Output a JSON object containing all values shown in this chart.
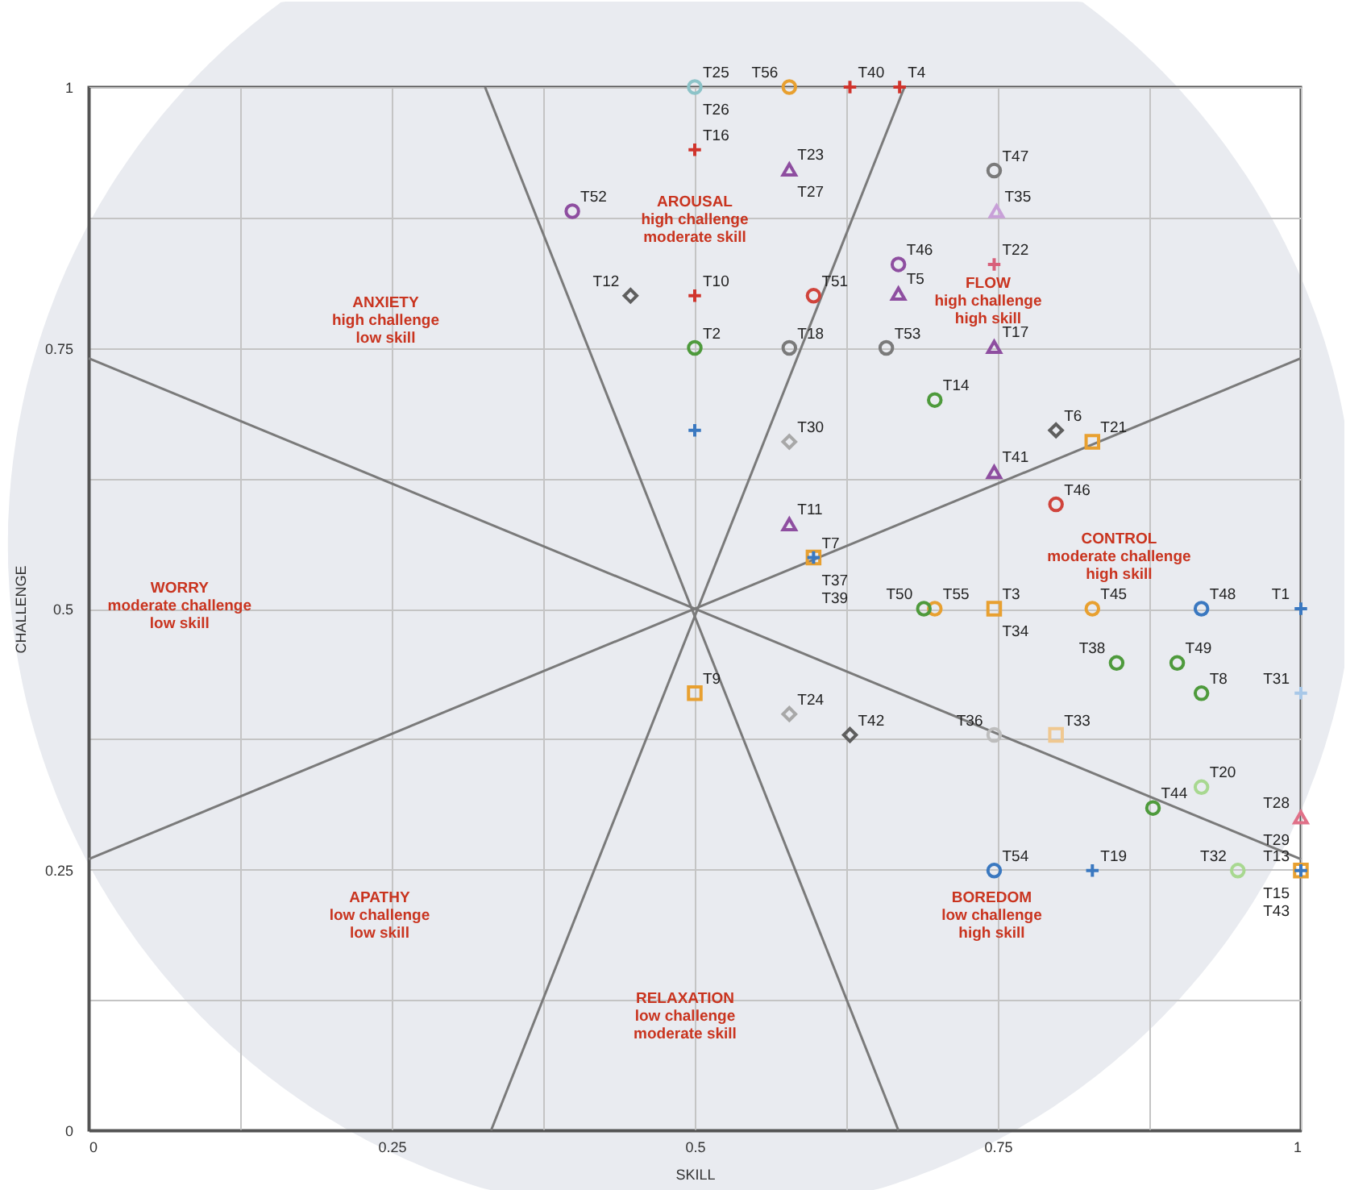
{
  "chart_data": {
    "type": "scatter",
    "xlabel": "SKILL",
    "ylabel": "CHALLENGE",
    "xlim": [
      0,
      1
    ],
    "ylim": [
      0,
      1
    ],
    "xticks": [
      0,
      {
        "value": 0.125,
        "label": null
      },
      0.25,
      {
        "value": 0.375,
        "label": null
      },
      0.5,
      {
        "value": 0.625,
        "label": null
      },
      0.75,
      {
        "value": 0.875,
        "label": null
      },
      1
    ],
    "yticks": [
      0,
      {
        "value": 0.125,
        "label": null
      },
      0.25,
      {
        "value": 0.375,
        "label": null
      },
      0.5,
      {
        "value": 0.625,
        "label": null
      },
      0.75,
      {
        "value": 0.875,
        "label": null
      },
      1
    ],
    "grid": true,
    "series": [
      {
        "type": "line",
        "color": "#7a7a7a",
        "x": [
          0,
          1
        ],
        "values": [
          0.74,
          0.26
        ]
      },
      {
        "type": "line",
        "color": "#7a7a7a",
        "x": [
          0,
          1
        ],
        "values": [
          0.26,
          0.74
        ]
      },
      {
        "type": "line",
        "color": "#7a7a7a",
        "x": [
          0.327,
          0.668
        ],
        "values": [
          1,
          0
        ]
      },
      {
        "type": "line",
        "color": "#7a7a7a",
        "x": [
          0.332,
          0.673
        ],
        "values": [
          0,
          1
        ]
      },
      {
        "marker": "cross",
        "color": "#d0342c",
        "x": [
          0.628,
          0.669,
          0.5,
          0.5
        ],
        "values": [
          1,
          1,
          0.94,
          0.8
        ]
      },
      {
        "marker": "cross",
        "color": "#d8607a",
        "x": [
          0.747
        ],
        "values": [
          0.83
        ]
      },
      {
        "marker": "circle",
        "color": "#e8a030",
        "x": [
          0.578,
          0.698,
          0.828
        ],
        "values": [
          1,
          0.5,
          0.5
        ]
      },
      {
        "marker": "circle",
        "color": "#8cc3c8",
        "x": [
          0.5
        ],
        "values": [
          1
        ]
      },
      {
        "marker": "circle",
        "color": "#8e4ea0",
        "x": [
          0.399,
          0.668
        ],
        "values": [
          0.881,
          0.83
        ]
      },
      {
        "marker": "triangle",
        "color": "#8e4ea0",
        "x": [
          0.578,
          0.668,
          0.747,
          0.747,
          0.578
        ],
        "values": [
          0.921,
          0.802,
          0.751,
          0.631,
          0.581
        ]
      },
      {
        "marker": "triangle",
        "color": "#c8a0d8",
        "x": [
          0.749
        ],
        "values": [
          0.881
        ]
      },
      {
        "marker": "circle",
        "color": "#7a7a7a",
        "x": [
          0.747,
          0.578,
          0.658
        ],
        "values": [
          0.92,
          0.75,
          0.75
        ]
      },
      {
        "marker": "circle",
        "color": "#bdbdbd",
        "x": [
          0.747
        ],
        "values": [
          0.379
        ]
      },
      {
        "marker": "diamond",
        "color": "#5e5e5e",
        "x": [
          0.447,
          0.798,
          0.628
        ],
        "values": [
          0.8,
          0.671,
          0.379
        ]
      },
      {
        "marker": "diamond",
        "color": "#a8a8a8",
        "x": [
          0.578,
          0.578
        ],
        "values": [
          0.66,
          0.399
        ]
      },
      {
        "marker": "circle",
        "color": "#d0443c",
        "x": [
          0.598,
          0.798
        ],
        "values": [
          0.8,
          0.6
        ]
      },
      {
        "marker": "circle",
        "color": "#4e9a3c",
        "x": [
          0.5,
          0.698,
          0.689,
          0.848,
          0.898,
          0.918,
          0.878
        ],
        "values": [
          0.75,
          0.7,
          0.5,
          0.448,
          0.448,
          0.419,
          0.309
        ]
      },
      {
        "marker": "circle",
        "color": "#a8d890",
        "x": [
          0.918,
          0.948
        ],
        "values": [
          0.329,
          0.249
        ]
      },
      {
        "marker": "square",
        "color": "#e8a030",
        "x": [
          0.828,
          0.598,
          0.747,
          0.5,
          1
        ],
        "values": [
          0.66,
          0.549,
          0.5,
          0.419,
          0.249
        ]
      },
      {
        "marker": "square",
        "color": "#f0c890",
        "x": [
          0.798
        ],
        "values": [
          0.379
        ]
      },
      {
        "marker": "cross",
        "color": "#3a78c0",
        "x": [
          0.5,
          0.598,
          1,
          0.828,
          1
        ],
        "values": [
          0.671,
          0.549,
          0.5,
          0.249,
          0.249
        ]
      },
      {
        "marker": "cross",
        "color": "#a8c8e8",
        "x": [
          1
        ],
        "values": [
          0.419
        ]
      },
      {
        "marker": "circle",
        "color": "#3a78c0",
        "x": [
          0.918,
          0.747
        ],
        "values": [
          0.5,
          0.249
        ]
      },
      {
        "marker": "triangle",
        "color": "#e07088",
        "x": [
          1
        ],
        "values": [
          0.3
        ]
      }
    ],
    "annotations": [
      {
        "text": "T25",
        "x": 0.5,
        "y": 1
      },
      {
        "text": "T26",
        "x": 0.5,
        "y": 1
      },
      {
        "text": "T56",
        "x": 0.578,
        "y": 1
      },
      {
        "text": "T40",
        "x": 0.628,
        "y": 1
      },
      {
        "text": "T4",
        "x": 0.669,
        "y": 1
      },
      {
        "text": "T16",
        "x": 0.5,
        "y": 0.94
      },
      {
        "text": "T23",
        "x": 0.578,
        "y": 0.921
      },
      {
        "text": "T27",
        "x": 0.578,
        "y": 0.921
      },
      {
        "text": "T52",
        "x": 0.399,
        "y": 0.881
      },
      {
        "text": "T47",
        "x": 0.747,
        "y": 0.92
      },
      {
        "text": "T35",
        "x": 0.749,
        "y": 0.881
      },
      {
        "text": "T46",
        "x": 0.668,
        "y": 0.83
      },
      {
        "text": "T22",
        "x": 0.747,
        "y": 0.83
      },
      {
        "text": "T5",
        "x": 0.668,
        "y": 0.802
      },
      {
        "text": "T12",
        "x": 0.447,
        "y": 0.8
      },
      {
        "text": "T10",
        "x": 0.5,
        "y": 0.8
      },
      {
        "text": "T51",
        "x": 0.598,
        "y": 0.8
      },
      {
        "text": "T17",
        "x": 0.747,
        "y": 0.751
      },
      {
        "text": "T2",
        "x": 0.5,
        "y": 0.75
      },
      {
        "text": "T18",
        "x": 0.578,
        "y": 0.75
      },
      {
        "text": "T53",
        "x": 0.658,
        "y": 0.75
      },
      {
        "text": "T14",
        "x": 0.698,
        "y": 0.7
      },
      {
        "text": "T6",
        "x": 0.798,
        "y": 0.671
      },
      {
        "text": "T21",
        "x": 0.828,
        "y": 0.66
      },
      {
        "text": "T41",
        "x": 0.747,
        "y": 0.631
      },
      {
        "text": "T30",
        "x": 0.578,
        "y": 0.66
      },
      {
        "text": "T46",
        "x": 0.798,
        "y": 0.6
      },
      {
        "text": "T11",
        "x": 0.578,
        "y": 0.581
      },
      {
        "text": "T7",
        "x": 0.598,
        "y": 0.549
      },
      {
        "text": "T37",
        "x": 0.598,
        "y": 0.549
      },
      {
        "text": "T39",
        "x": 0.598,
        "y": 0.549
      },
      {
        "text": "T50",
        "x": 0.689,
        "y": 0.5
      },
      {
        "text": "T55",
        "x": 0.698,
        "y": 0.5
      },
      {
        "text": "T3",
        "x": 0.747,
        "y": 0.5
      },
      {
        "text": "T34",
        "x": 0.747,
        "y": 0.5
      },
      {
        "text": "T45",
        "x": 0.828,
        "y": 0.5
      },
      {
        "text": "T48",
        "x": 0.918,
        "y": 0.5
      },
      {
        "text": "T1",
        "x": 1,
        "y": 0.5
      },
      {
        "text": "T38",
        "x": 0.848,
        "y": 0.448
      },
      {
        "text": "T49",
        "x": 0.898,
        "y": 0.448
      },
      {
        "text": "T8",
        "x": 0.918,
        "y": 0.419
      },
      {
        "text": "T31",
        "x": 1,
        "y": 0.419
      },
      {
        "text": "T9",
        "x": 0.5,
        "y": 0.419
      },
      {
        "text": "T24",
        "x": 0.578,
        "y": 0.399
      },
      {
        "text": "T42",
        "x": 0.628,
        "y": 0.379
      },
      {
        "text": "T36",
        "x": 0.747,
        "y": 0.379
      },
      {
        "text": "T33",
        "x": 0.798,
        "y": 0.379
      },
      {
        "text": "T20",
        "x": 0.918,
        "y": 0.329
      },
      {
        "text": "T44",
        "x": 0.878,
        "y": 0.309
      },
      {
        "text": "T28",
        "x": 1,
        "y": 0.3
      },
      {
        "text": "T29",
        "x": 1,
        "y": 0.3
      },
      {
        "text": "T13",
        "x": 1,
        "y": 0.249
      },
      {
        "text": "T15",
        "x": 1,
        "y": 0.249
      },
      {
        "text": "T43",
        "x": 1,
        "y": 0.249
      },
      {
        "text": "T32",
        "x": 0.948,
        "y": 0.249
      },
      {
        "text": "T19",
        "x": 0.828,
        "y": 0.249
      },
      {
        "text": "T54",
        "x": 0.747,
        "y": 0.249
      },
      "ANXIETY\nhigh challenge\nlow skill",
      "AROUSAL\nhigh challenge\nmoderate skill",
      "FLOW\nhigh challenge\nhigh skill",
      "WORRY\nmoderate challenge\nlow skill",
      "CONTROL\nmoderate challenge\nhigh skill",
      "APATHY\nlow challenge\nlow skill",
      "RELAXATION\nlow challenge\nmoderate skill",
      "BOREDOM\nlow challenge\nhigh skill"
    ]
  }
}
